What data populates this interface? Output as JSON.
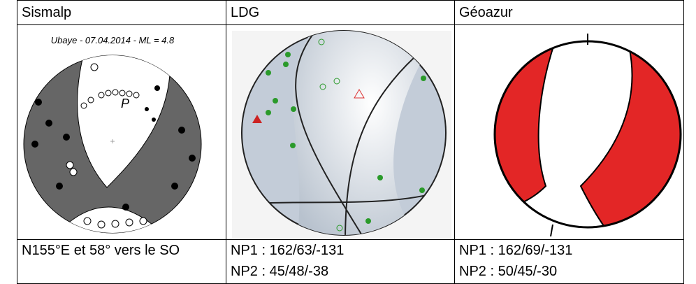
{
  "table": {
    "header": [
      "Sismalp",
      "LDG",
      "Géoazur"
    ],
    "figure": {
      "title": "Ubaye - 07.04.2014 - ML = 4.8",
      "axis_label": "P"
    },
    "rows": [
      [
        [
          "N155°E et 58° vers le SO"
        ],
        [
          "NP1 : 162/63/-131",
          "NP2 : 45/48/-38"
        ],
        [
          "NP1 : 162/69/-131",
          "NP2 : 50/45/-30"
        ]
      ]
    ]
  }
}
